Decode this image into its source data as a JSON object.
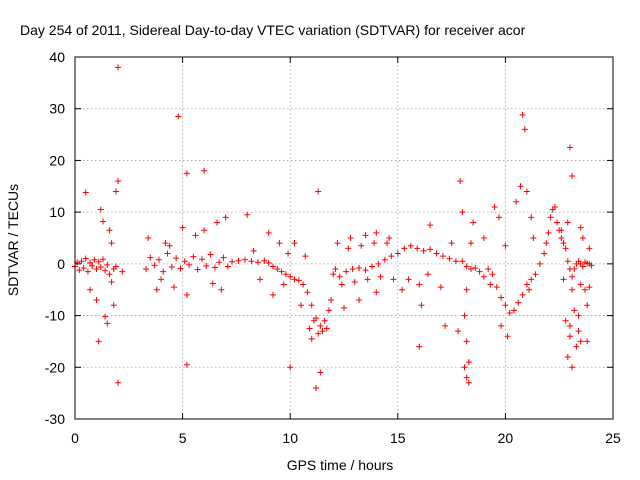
{
  "chart_data": {
    "type": "scatter",
    "title": "Day 254 of 2011, Sidereal Day-to-day VTEC variation (SDTVAR) for receiver acor",
    "xlabel": "GPS time / hours",
    "ylabel": "SDTVAR / TECUs",
    "xlim": [
      0,
      25
    ],
    "ylim": [
      -30,
      40
    ],
    "xticks": [
      0,
      5,
      10,
      15,
      20,
      25
    ],
    "yticks": [
      -30,
      -20,
      -10,
      0,
      10,
      20,
      30,
      40
    ],
    "xtick_labels": [
      "0",
      "5",
      "10",
      "15",
      "20",
      "25"
    ],
    "ytick_labels": [
      "-30",
      "-20",
      "-10",
      "0",
      "10",
      "20",
      "30",
      "40"
    ],
    "grid": true,
    "marker": "plus",
    "color": "#ff0000",
    "series": [
      {
        "name": "SDTVAR",
        "points": [
          [
            0.0,
            -0.5
          ],
          [
            0.1,
            0.3
          ],
          [
            0.2,
            -1.2
          ],
          [
            0.3,
            0.5
          ],
          [
            0.4,
            -0.8
          ],
          [
            0.5,
            1.0
          ],
          [
            0.6,
            -1.5
          ],
          [
            0.7,
            0.2
          ],
          [
            0.8,
            -0.4
          ],
          [
            0.9,
            0.8
          ],
          [
            1.0,
            -1.0
          ],
          [
            1.1,
            0.4
          ],
          [
            1.2,
            -0.6
          ],
          [
            1.3,
            0.9
          ],
          [
            1.4,
            -1.3
          ],
          [
            1.5,
            -0.2
          ],
          [
            1.6,
            -2.0
          ],
          [
            1.7,
            -3.5
          ],
          [
            1.8,
            -1.0
          ],
          [
            1.9,
            -0.5
          ],
          [
            0.5,
            13.8
          ],
          [
            1.2,
            10.5
          ],
          [
            1.3,
            8.2
          ],
          [
            1.6,
            6.5
          ],
          [
            1.9,
            14.0
          ],
          [
            2.0,
            16.0
          ],
          [
            0.7,
            -5.0
          ],
          [
            1.0,
            -7.0
          ],
          [
            1.4,
            -10.2
          ],
          [
            1.5,
            -11.5
          ],
          [
            1.1,
            -15.0
          ],
          [
            2.0,
            -23.0
          ],
          [
            2.0,
            38.0
          ],
          [
            1.8,
            -8.0
          ],
          [
            2.2,
            -1.5
          ],
          [
            1.7,
            4.0
          ],
          [
            3.3,
            -1.0
          ],
          [
            3.5,
            1.2
          ],
          [
            3.7,
            -0.3
          ],
          [
            3.9,
            0.8
          ],
          [
            4.1,
            -1.5
          ],
          [
            4.3,
            2.0
          ],
          [
            4.5,
            -0.6
          ],
          [
            4.7,
            1.1
          ],
          [
            4.9,
            -0.9
          ],
          [
            5.1,
            0.5
          ],
          [
            5.3,
            -0.2
          ],
          [
            5.5,
            1.4
          ],
          [
            5.7,
            -1.1
          ],
          [
            5.9,
            0.9
          ],
          [
            6.1,
            -0.4
          ],
          [
            6.3,
            1.8
          ],
          [
            6.5,
            -0.7
          ],
          [
            6.7,
            0.3
          ],
          [
            6.9,
            1.2
          ],
          [
            7.1,
            -0.5
          ],
          [
            3.4,
            5.0
          ],
          [
            3.8,
            -5.0
          ],
          [
            4.2,
            4.0
          ],
          [
            4.6,
            -4.5
          ],
          [
            5.0,
            7.0
          ],
          [
            5.2,
            -6.0
          ],
          [
            6.0,
            6.5
          ],
          [
            6.4,
            -3.8
          ],
          [
            7.0,
            9.0
          ],
          [
            6.8,
            -5.0
          ],
          [
            4.8,
            28.5
          ],
          [
            5.2,
            17.5
          ],
          [
            6.0,
            18.0
          ],
          [
            5.2,
            -19.5
          ],
          [
            4.4,
            3.5
          ],
          [
            5.6,
            5.5
          ],
          [
            6.6,
            8.0
          ],
          [
            4.0,
            -3.0
          ],
          [
            7.3,
            0.4
          ],
          [
            7.6,
            0.6
          ],
          [
            7.9,
            0.8
          ],
          [
            8.2,
            0.5
          ],
          [
            8.5,
            0.3
          ],
          [
            8.8,
            0.6
          ],
          [
            9.0,
            0.2
          ],
          [
            9.2,
            -0.5
          ],
          [
            9.4,
            -1.0
          ],
          [
            9.6,
            -1.5
          ],
          [
            9.8,
            -2.0
          ],
          [
            10.0,
            -2.5
          ],
          [
            10.2,
            -3.0
          ],
          [
            10.4,
            -3.2
          ],
          [
            10.6,
            -4.0
          ],
          [
            10.8,
            -5.5
          ],
          [
            11.0,
            -8.0
          ],
          [
            11.2,
            -10.5
          ],
          [
            11.4,
            -12.0
          ],
          [
            11.6,
            -11.0
          ],
          [
            11.8,
            -9.0
          ],
          [
            11.9,
            -7.0
          ],
          [
            10.9,
            -12.5
          ],
          [
            11.3,
            -13.5
          ],
          [
            11.5,
            -13.0
          ],
          [
            11.7,
            -12.5
          ],
          [
            11.1,
            -11.0
          ],
          [
            11.0,
            -14.5
          ],
          [
            8.0,
            9.5
          ],
          [
            9.0,
            6.0
          ],
          [
            9.5,
            4.0
          ],
          [
            10.2,
            4.0
          ],
          [
            9.2,
            -6.0
          ],
          [
            10.0,
            -20.0
          ],
          [
            11.2,
            -24.0
          ],
          [
            11.4,
            -21.0
          ],
          [
            11.3,
            14.0
          ],
          [
            10.5,
            -8.0
          ],
          [
            9.7,
            -4.0
          ],
          [
            8.6,
            -3.0
          ],
          [
            9.9,
            2.0
          ],
          [
            10.7,
            1.5
          ],
          [
            8.3,
            2.5
          ],
          [
            12.0,
            -2.0
          ],
          [
            12.3,
            -2.5
          ],
          [
            12.6,
            -1.5
          ],
          [
            12.9,
            -1.0
          ],
          [
            13.2,
            -0.8
          ],
          [
            13.5,
            -1.2
          ],
          [
            13.8,
            -0.5
          ],
          [
            14.1,
            0.0
          ],
          [
            14.4,
            0.8
          ],
          [
            14.7,
            1.5
          ],
          [
            15.0,
            2.0
          ],
          [
            15.3,
            3.0
          ],
          [
            15.6,
            3.5
          ],
          [
            15.9,
            3.0
          ],
          [
            16.2,
            2.5
          ],
          [
            16.5,
            2.8
          ],
          [
            16.8,
            2.0
          ],
          [
            17.1,
            1.5
          ],
          [
            17.4,
            1.0
          ],
          [
            17.7,
            0.5
          ],
          [
            12.1,
            -1.0
          ],
          [
            12.4,
            -4.0
          ],
          [
            12.7,
            3.0
          ],
          [
            13.0,
            -3.5
          ],
          [
            13.3,
            3.5
          ],
          [
            13.6,
            -3.0
          ],
          [
            13.9,
            4.0
          ],
          [
            14.2,
            -2.5
          ],
          [
            14.5,
            4.0
          ],
          [
            14.8,
            -3.0
          ],
          [
            12.2,
            4.0
          ],
          [
            12.8,
            5.0
          ],
          [
            13.5,
            5.5
          ],
          [
            14.0,
            6.0
          ],
          [
            14.6,
            5.0
          ],
          [
            15.5,
            -3.0
          ],
          [
            16.0,
            -4.0
          ],
          [
            16.4,
            -2.0
          ],
          [
            17.0,
            -4.5
          ],
          [
            17.5,
            4.0
          ],
          [
            12.5,
            -8.5
          ],
          [
            13.2,
            -7.0
          ],
          [
            14.0,
            -5.5
          ],
          [
            15.2,
            -5.0
          ],
          [
            16.1,
            -8.0
          ],
          [
            16.5,
            7.5
          ],
          [
            16.0,
            -16.0
          ],
          [
            17.2,
            -12.0
          ],
          [
            17.8,
            -13.0
          ],
          [
            18.0,
            0.5
          ],
          [
            18.2,
            -0.5
          ],
          [
            18.4,
            -1.0
          ],
          [
            18.6,
            -0.8
          ],
          [
            18.8,
            -1.5
          ],
          [
            19.0,
            -2.5
          ],
          [
            19.2,
            -1.0
          ],
          [
            19.4,
            -2.0
          ],
          [
            19.6,
            -4.5
          ],
          [
            19.8,
            -6.5
          ],
          [
            20.0,
            -8.0
          ],
          [
            20.2,
            -9.5
          ],
          [
            20.4,
            -9.0
          ],
          [
            20.6,
            -7.5
          ],
          [
            20.8,
            -6.0
          ],
          [
            21.0,
            -4.0
          ],
          [
            21.2,
            -3.0
          ],
          [
            21.4,
            -2.0
          ],
          [
            21.6,
            0.0
          ],
          [
            21.8,
            2.0
          ],
          [
            17.9,
            16.0
          ],
          [
            18.1,
            -10.0
          ],
          [
            18.1,
            -20.0
          ],
          [
            18.2,
            -22.0
          ],
          [
            18.3,
            -19.0
          ],
          [
            18.2,
            -15.0
          ],
          [
            18.3,
            -23.0
          ],
          [
            18.0,
            10.0
          ],
          [
            18.5,
            8.0
          ],
          [
            18.2,
            -5.0
          ],
          [
            19.5,
            11.0
          ],
          [
            19.7,
            9.0
          ],
          [
            19.8,
            -12.0
          ],
          [
            20.1,
            -14.0
          ],
          [
            20.5,
            12.0
          ],
          [
            20.7,
            15.0
          ],
          [
            20.8,
            28.8
          ],
          [
            20.9,
            26.0
          ],
          [
            21.0,
            14.0
          ],
          [
            21.2,
            9.0
          ],
          [
            18.4,
            4.0
          ],
          [
            19.0,
            5.0
          ],
          [
            19.3,
            -4.0
          ],
          [
            20.0,
            3.5
          ],
          [
            21.1,
            -5.0
          ],
          [
            21.3,
            5.0
          ],
          [
            21.9,
            4.0
          ],
          [
            22.0,
            6.0
          ],
          [
            22.1,
            9.0
          ],
          [
            22.2,
            10.5
          ],
          [
            22.3,
            11.0
          ],
          [
            22.4,
            8.0
          ],
          [
            22.5,
            6.5
          ],
          [
            22.6,
            5.0
          ],
          [
            22.7,
            4.0
          ],
          [
            22.8,
            3.0
          ],
          [
            22.9,
            0.5
          ],
          [
            23.0,
            -1.0
          ],
          [
            23.1,
            -2.5
          ],
          [
            23.2,
            -1.0
          ],
          [
            23.3,
            0.0
          ],
          [
            23.4,
            0.5
          ],
          [
            23.5,
            0.0
          ],
          [
            23.6,
            -0.5
          ],
          [
            23.7,
            0.3
          ],
          [
            23.8,
            0.1
          ],
          [
            23.9,
            0.0
          ],
          [
            24.0,
            -0.3
          ],
          [
            23.0,
            22.5
          ],
          [
            23.1,
            17.0
          ],
          [
            22.8,
            -11.0
          ],
          [
            23.0,
            -14.0
          ],
          [
            22.9,
            -18.0
          ],
          [
            23.1,
            -20.0
          ],
          [
            23.3,
            -16.0
          ],
          [
            23.4,
            -13.0
          ],
          [
            23.5,
            7.0
          ],
          [
            23.7,
            -5.0
          ],
          [
            23.9,
            -4.5
          ],
          [
            23.5,
            -15.0
          ],
          [
            23.8,
            -8.0
          ],
          [
            22.7,
            -3.0
          ],
          [
            22.6,
            6.5
          ],
          [
            23.6,
            5.0
          ],
          [
            23.9,
            3.0
          ],
          [
            23.4,
            -10.0
          ],
          [
            23.2,
            -9.0
          ],
          [
            23.0,
            -12.0
          ],
          [
            23.1,
            -5.0
          ],
          [
            22.9,
            8.0
          ],
          [
            23.5,
            -4.0
          ],
          [
            23.8,
            -15.0
          ]
        ]
      }
    ]
  }
}
